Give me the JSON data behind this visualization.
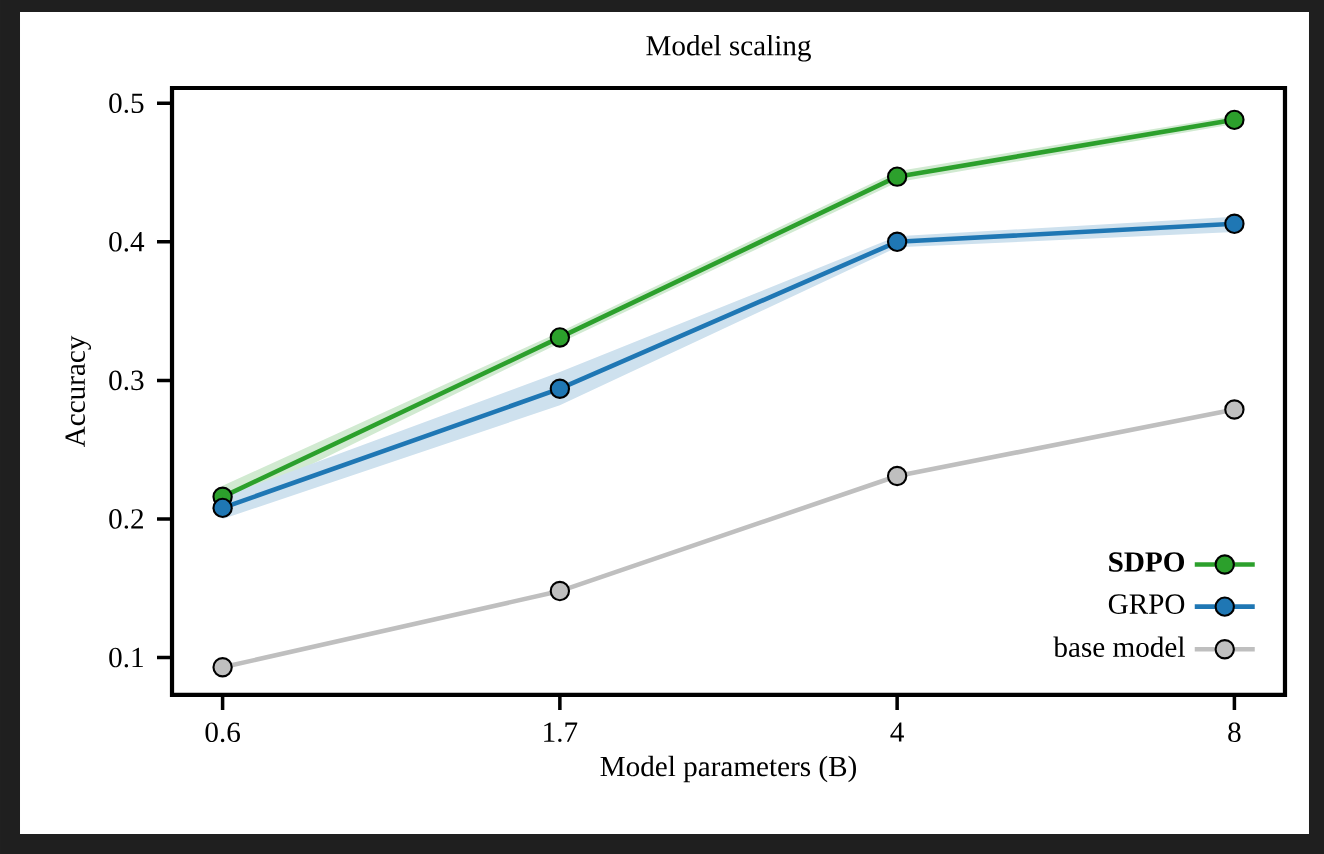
{
  "chart_data": {
    "type": "line",
    "title": "Model scaling",
    "xlabel": "Model parameters (B)",
    "ylabel": "Accuracy",
    "categories": [
      "0.6",
      "1.7",
      "4",
      "8"
    ],
    "series": [
      {
        "name": "**SDPO**",
        "color": "#2ca02c",
        "values": [
          0.216,
          0.331,
          0.447,
          0.488
        ],
        "lower": [
          0.208,
          0.327,
          0.443,
          0.485
        ],
        "upper": [
          0.224,
          0.335,
          0.451,
          0.491
        ]
      },
      {
        "name": "GRPO",
        "color": "#1f77b4",
        "values": [
          0.208,
          0.294,
          0.4,
          0.413
        ],
        "lower": [
          0.2,
          0.282,
          0.396,
          0.407
        ],
        "upper": [
          0.216,
          0.306,
          0.404,
          0.418
        ]
      },
      {
        "name": "base model",
        "color": "#bfbfbf",
        "values": [
          0.093,
          0.148,
          0.231,
          0.279
        ]
      }
    ],
    "ylim": [
      0.073,
      0.511
    ],
    "yticks": [
      0.1,
      0.2,
      0.3,
      0.4,
      0.5
    ],
    "grid": false,
    "legend": "bottom right",
    "marker": "circle",
    "line_style": "solid"
  }
}
